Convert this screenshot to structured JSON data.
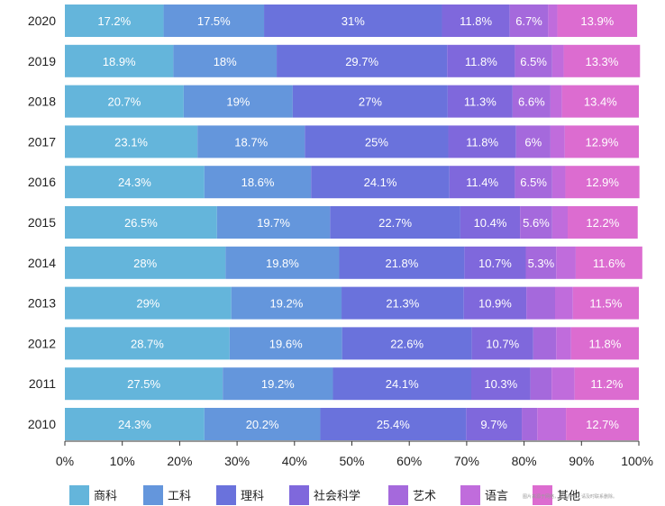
{
  "chart_data": {
    "type": "bar",
    "orientation": "horizontal",
    "stacked": true,
    "categories": [
      "2020",
      "2019",
      "2018",
      "2017",
      "2016",
      "2015",
      "2014",
      "2013",
      "2012",
      "2011",
      "2010"
    ],
    "series": [
      {
        "name": "商科",
        "color": "#64b5db",
        "values": [
          17.2,
          18.9,
          20.7,
          23.1,
          24.3,
          26.5,
          28,
          29,
          28.7,
          27.5,
          24.3
        ],
        "labels": [
          "17.2%",
          "18.9%",
          "20.7%",
          "23.1%",
          "24.3%",
          "26.5%",
          "28%",
          "29%",
          "28.7%",
          "27.5%",
          "24.3%"
        ]
      },
      {
        "name": "工科",
        "color": "#6496dc",
        "values": [
          17.5,
          18,
          19,
          18.7,
          18.6,
          19.7,
          19.8,
          19.2,
          19.6,
          19.2,
          20.2
        ],
        "labels": [
          "17.5%",
          "18%",
          "19%",
          "18.7%",
          "18.6%",
          "19.7%",
          "19.8%",
          "19.2%",
          "19.6%",
          "19.2%",
          "20.2%"
        ]
      },
      {
        "name": "理科",
        "color": "#6a72dc",
        "values": [
          31,
          29.7,
          27,
          25,
          24.1,
          22.7,
          21.8,
          21.3,
          22.6,
          24.1,
          25.4
        ],
        "labels": [
          "31%",
          "29.7%",
          "27%",
          "25%",
          "24.1%",
          "22.7%",
          "21.8%",
          "21.3%",
          "22.6%",
          "24.1%",
          "25.4%"
        ]
      },
      {
        "name": "社会科学",
        "color": "#7f68dc",
        "values": [
          11.8,
          11.8,
          11.3,
          11.8,
          11.4,
          10.4,
          10.7,
          10.9,
          10.7,
          10.3,
          9.7
        ],
        "labels": [
          "11.8%",
          "11.8%",
          "11.3%",
          "11.8%",
          "11.4%",
          "10.4%",
          "10.7%",
          "10.9%",
          "10.7%",
          "10.3%",
          "9.7%"
        ]
      },
      {
        "name": "艺术",
        "color": "#a569dc",
        "values": [
          6.7,
          6.5,
          6.6,
          6,
          6.5,
          5.6,
          5.3,
          5,
          4,
          3.7,
          2.7
        ],
        "labels": [
          "6.7%",
          "6.5%",
          "6.6%",
          "6%",
          "6.5%",
          "5.6%",
          "5.3%",
          "",
          "",
          "",
          ""
        ]
      },
      {
        "name": "语言",
        "color": "#c06cdc",
        "values": [
          1.6,
          2,
          2,
          2.5,
          2.3,
          2.7,
          3.4,
          3.1,
          2.6,
          4,
          5
        ]
      },
      {
        "name": "其他",
        "color": "#dc6cd0",
        "values": [
          13.9,
          13.3,
          13.4,
          12.9,
          12.9,
          12.2,
          11.6,
          11.5,
          11.8,
          11.2,
          12.7
        ],
        "labels": [
          "13.9%",
          "13.3%",
          "13.4%",
          "12.9%",
          "12.9%",
          "12.2%",
          "11.6%",
          "11.5%",
          "11.8%",
          "11.2%",
          "12.7%"
        ]
      }
    ],
    "x_ticks": [
      "0%",
      "10%",
      "20%",
      "30%",
      "40%",
      "50%",
      "60%",
      "70%",
      "80%",
      "90%",
      "100%"
    ],
    "xlim": [
      0,
      100
    ],
    "legend_position": "bottom",
    "watermark": "图片来源于网络，仅供参考，请及时联系删除。"
  }
}
